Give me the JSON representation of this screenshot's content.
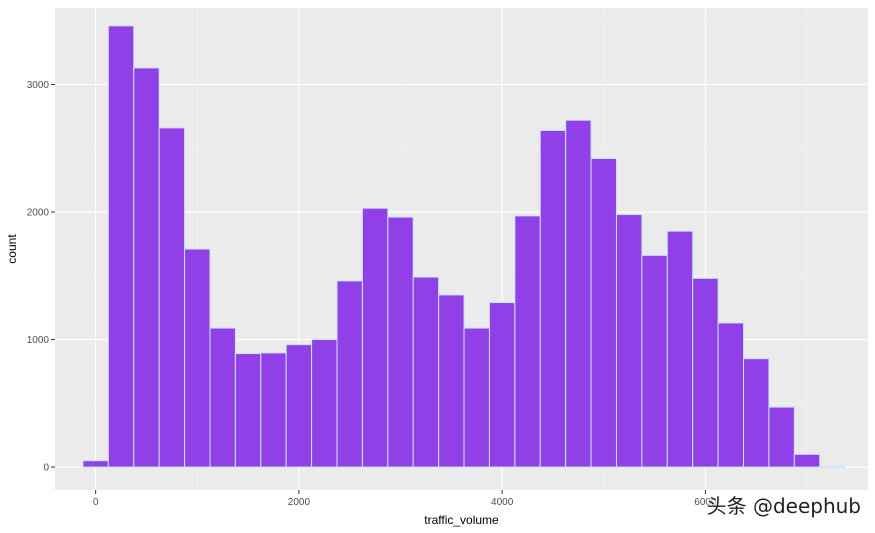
{
  "chart_data": {
    "type": "bar",
    "subtype": "histogram",
    "xlabel": "traffic_volume",
    "ylabel": "count",
    "xlim": [
      -400,
      7600
    ],
    "ylim": [
      -180,
      3600
    ],
    "x_ticks": [
      0,
      2000,
      4000,
      6000
    ],
    "x_tick_labels": [
      "0",
      "2000",
      "4000",
      "6000"
    ],
    "y_ticks": [
      0,
      1000,
      2000,
      3000
    ],
    "y_tick_labels": [
      "0",
      "1000",
      "2000",
      "3000"
    ],
    "bin_width": 250,
    "bins": [
      {
        "x_start": -125,
        "x_end": 125,
        "count": 50
      },
      {
        "x_start": 125,
        "x_end": 375,
        "count": 3460
      },
      {
        "x_start": 375,
        "x_end": 625,
        "count": 3130
      },
      {
        "x_start": 625,
        "x_end": 875,
        "count": 2660
      },
      {
        "x_start": 875,
        "x_end": 1125,
        "count": 1710
      },
      {
        "x_start": 1125,
        "x_end": 1375,
        "count": 1090
      },
      {
        "x_start": 1375,
        "x_end": 1625,
        "count": 890
      },
      {
        "x_start": 1625,
        "x_end": 1875,
        "count": 895
      },
      {
        "x_start": 1875,
        "x_end": 2125,
        "count": 960
      },
      {
        "x_start": 2125,
        "x_end": 2375,
        "count": 1000
      },
      {
        "x_start": 2375,
        "x_end": 2625,
        "count": 1460
      },
      {
        "x_start": 2625,
        "x_end": 2875,
        "count": 2030
      },
      {
        "x_start": 2875,
        "x_end": 3125,
        "count": 1960
      },
      {
        "x_start": 3125,
        "x_end": 3375,
        "count": 1490
      },
      {
        "x_start": 3375,
        "x_end": 3625,
        "count": 1350
      },
      {
        "x_start": 3625,
        "x_end": 3875,
        "count": 1090
      },
      {
        "x_start": 3875,
        "x_end": 4125,
        "count": 1290
      },
      {
        "x_start": 4125,
        "x_end": 4375,
        "count": 1970
      },
      {
        "x_start": 4375,
        "x_end": 4625,
        "count": 2640
      },
      {
        "x_start": 4625,
        "x_end": 4875,
        "count": 2720
      },
      {
        "x_start": 4875,
        "x_end": 5125,
        "count": 2420
      },
      {
        "x_start": 5125,
        "x_end": 5375,
        "count": 1980
      },
      {
        "x_start": 5375,
        "x_end": 5625,
        "count": 1660
      },
      {
        "x_start": 5625,
        "x_end": 5875,
        "count": 1850
      },
      {
        "x_start": 5875,
        "x_end": 6125,
        "count": 1480
      },
      {
        "x_start": 6125,
        "x_end": 6375,
        "count": 1130
      },
      {
        "x_start": 6375,
        "x_end": 6625,
        "count": 850
      },
      {
        "x_start": 6625,
        "x_end": 6875,
        "count": 470
      },
      {
        "x_start": 6875,
        "x_end": 7125,
        "count": 100
      },
      {
        "x_start": 7125,
        "x_end": 7375,
        "count": 5
      }
    ],
    "grid": true,
    "legend": "none",
    "colors": {
      "panel_background": "#ebebeb",
      "grid_major": "#ffffff",
      "grid_minor": "#f5f5f5",
      "bar_fill": "#9140e8",
      "bar_outline": "#c8e4f7",
      "tick_label": "#4d4d4d",
      "tick_mark": "#333333"
    }
  },
  "watermark": {
    "text": "头条 @deephub"
  }
}
